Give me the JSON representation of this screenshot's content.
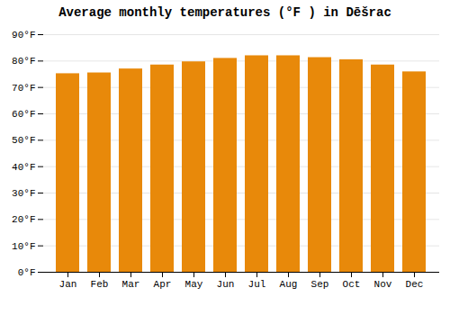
{
  "chart_data": {
    "type": "bar",
    "title": "Average monthly temperatures (°F ) in Dēšrac",
    "categories": [
      "Jan",
      "Feb",
      "Mar",
      "Apr",
      "May",
      "Jun",
      "Jul",
      "Aug",
      "Sep",
      "Oct",
      "Nov",
      "Dec"
    ],
    "values": [
      75.2,
      75.5,
      77.0,
      78.5,
      79.7,
      81.0,
      82.0,
      82.0,
      81.3,
      80.5,
      78.5,
      75.9
    ],
    "color": "#E8890A",
    "ylim": [
      0,
      90
    ],
    "yticks": [
      {
        "value": 0,
        "label": "0°F"
      },
      {
        "value": 10,
        "label": "10°F"
      },
      {
        "value": 20,
        "label": "20°F"
      },
      {
        "value": 30,
        "label": "30°F"
      },
      {
        "value": 40,
        "label": "40°F"
      },
      {
        "value": 50,
        "label": "50°F"
      },
      {
        "value": 60,
        "label": "60°F"
      },
      {
        "value": 70,
        "label": "70°F"
      },
      {
        "value": 80,
        "label": "80°F"
      },
      {
        "value": 90,
        "label": "90°F"
      }
    ],
    "grid": true
  }
}
